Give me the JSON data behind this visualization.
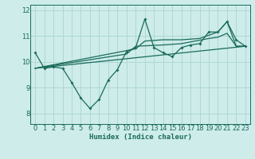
{
  "xlabel": "Humidex (Indice chaleur)",
  "bg_color": "#cdecea",
  "line_color": "#1a6b5a",
  "grid_color": "#afd8d4",
  "xlim": [
    -0.5,
    23.5
  ],
  "ylim": [
    7.6,
    12.2
  ],
  "yticks": [
    8,
    9,
    10,
    11,
    12
  ],
  "xticks": [
    0,
    1,
    2,
    3,
    4,
    5,
    6,
    7,
    8,
    9,
    10,
    11,
    12,
    13,
    14,
    15,
    16,
    17,
    18,
    19,
    20,
    21,
    22,
    23
  ],
  "line1_x": [
    0,
    1,
    2,
    3,
    4,
    5,
    6,
    7,
    8,
    9,
    10,
    11,
    12,
    13,
    14,
    15,
    16,
    17,
    18,
    19,
    20,
    21,
    22,
    23
  ],
  "line1_y": [
    10.35,
    9.75,
    9.8,
    9.75,
    9.2,
    8.6,
    8.2,
    8.55,
    9.3,
    9.7,
    10.4,
    10.55,
    11.65,
    10.55,
    10.35,
    10.2,
    10.55,
    10.65,
    10.7,
    11.15,
    11.15,
    11.55,
    10.85,
    10.6
  ],
  "line2_x": [
    0,
    23
  ],
  "line2_y": [
    9.75,
    10.6
  ],
  "line3_x": [
    0,
    11,
    12,
    14,
    16,
    18,
    20,
    21,
    22,
    23
  ],
  "line3_y": [
    9.75,
    10.5,
    10.8,
    10.85,
    10.85,
    10.9,
    11.15,
    11.55,
    10.6,
    10.6
  ],
  "line4_x": [
    0,
    10,
    11,
    14,
    16,
    19,
    20,
    21,
    22,
    23
  ],
  "line4_y": [
    9.75,
    10.3,
    10.6,
    10.65,
    10.7,
    10.9,
    10.95,
    11.1,
    10.6,
    10.6
  ]
}
